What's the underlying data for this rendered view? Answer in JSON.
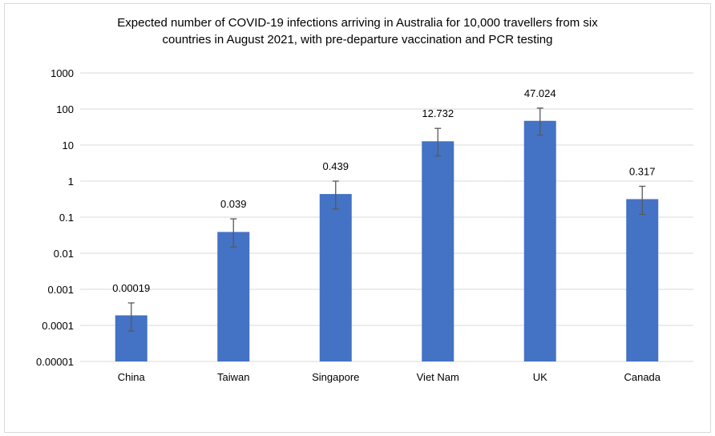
{
  "chart_data": {
    "type": "bar",
    "title_lines": [
      "Expected number of COVID-19 infections arriving in Australia for 10,000 travellers from six",
      "countries in August 2021, with pre-departure vaccination and PCR testing"
    ],
    "categories": [
      "China",
      "Taiwan",
      "Singapore",
      "Viet Nam",
      "UK",
      "Canada"
    ],
    "series": [
      {
        "values": [
          0.00019,
          0.039,
          0.439,
          12.732,
          47.024,
          0.317
        ],
        "labels": [
          "0.00019",
          "0.039",
          "0.439",
          "12.732",
          "47.024",
          "0.317"
        ],
        "error_low": [
          7e-05,
          0.015,
          0.17,
          5.0,
          19.0,
          0.12
        ],
        "error_high": [
          0.00042,
          0.09,
          1.0,
          29.0,
          106.0,
          0.72
        ],
        "color": "#4472c4"
      }
    ],
    "y_scale": "log",
    "ylim": [
      1e-05,
      1000
    ],
    "y_ticks": [
      "0.00001",
      "0.0001",
      "0.001",
      "0.01",
      "0.1",
      "1",
      "10",
      "100",
      "1000"
    ],
    "grid": true,
    "gridline_color": "#d9d9d9",
    "error_bar_color": "#595959"
  }
}
